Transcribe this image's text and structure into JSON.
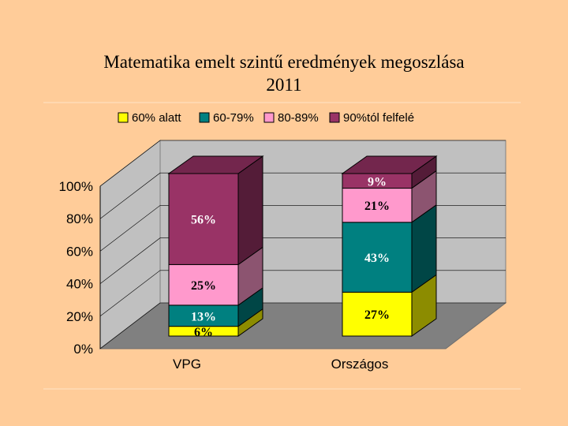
{
  "chart_data": {
    "type": "bar",
    "stacked": true,
    "three_d": true,
    "title": "Matematika emelt szintű eredmények megoszlása",
    "subtitle": "2011",
    "categories": [
      "VPG",
      "Országos"
    ],
    "series": [
      {
        "name": "60% alatt",
        "values": [
          6,
          27
        ],
        "labels": [
          "6%",
          "27%"
        ],
        "color": "#FFFF00"
      },
      {
        "name": "60-79%",
        "values": [
          13,
          43
        ],
        "labels": [
          "13%",
          "43%"
        ],
        "color": "#008080"
      },
      {
        "name": "80-89%",
        "values": [
          25,
          21
        ],
        "labels": [
          "25%",
          "21%"
        ],
        "color": "#FF99CC"
      },
      {
        "name": "90%tól felfelé",
        "values": [
          56,
          9
        ],
        "labels": [
          "56%",
          "9%"
        ],
        "color": "#993366"
      }
    ],
    "y_ticks": [
      "0%",
      "20%",
      "40%",
      "60%",
      "80%",
      "100%"
    ],
    "ylim": [
      0,
      100
    ],
    "grid": true,
    "legend_position": "top"
  }
}
